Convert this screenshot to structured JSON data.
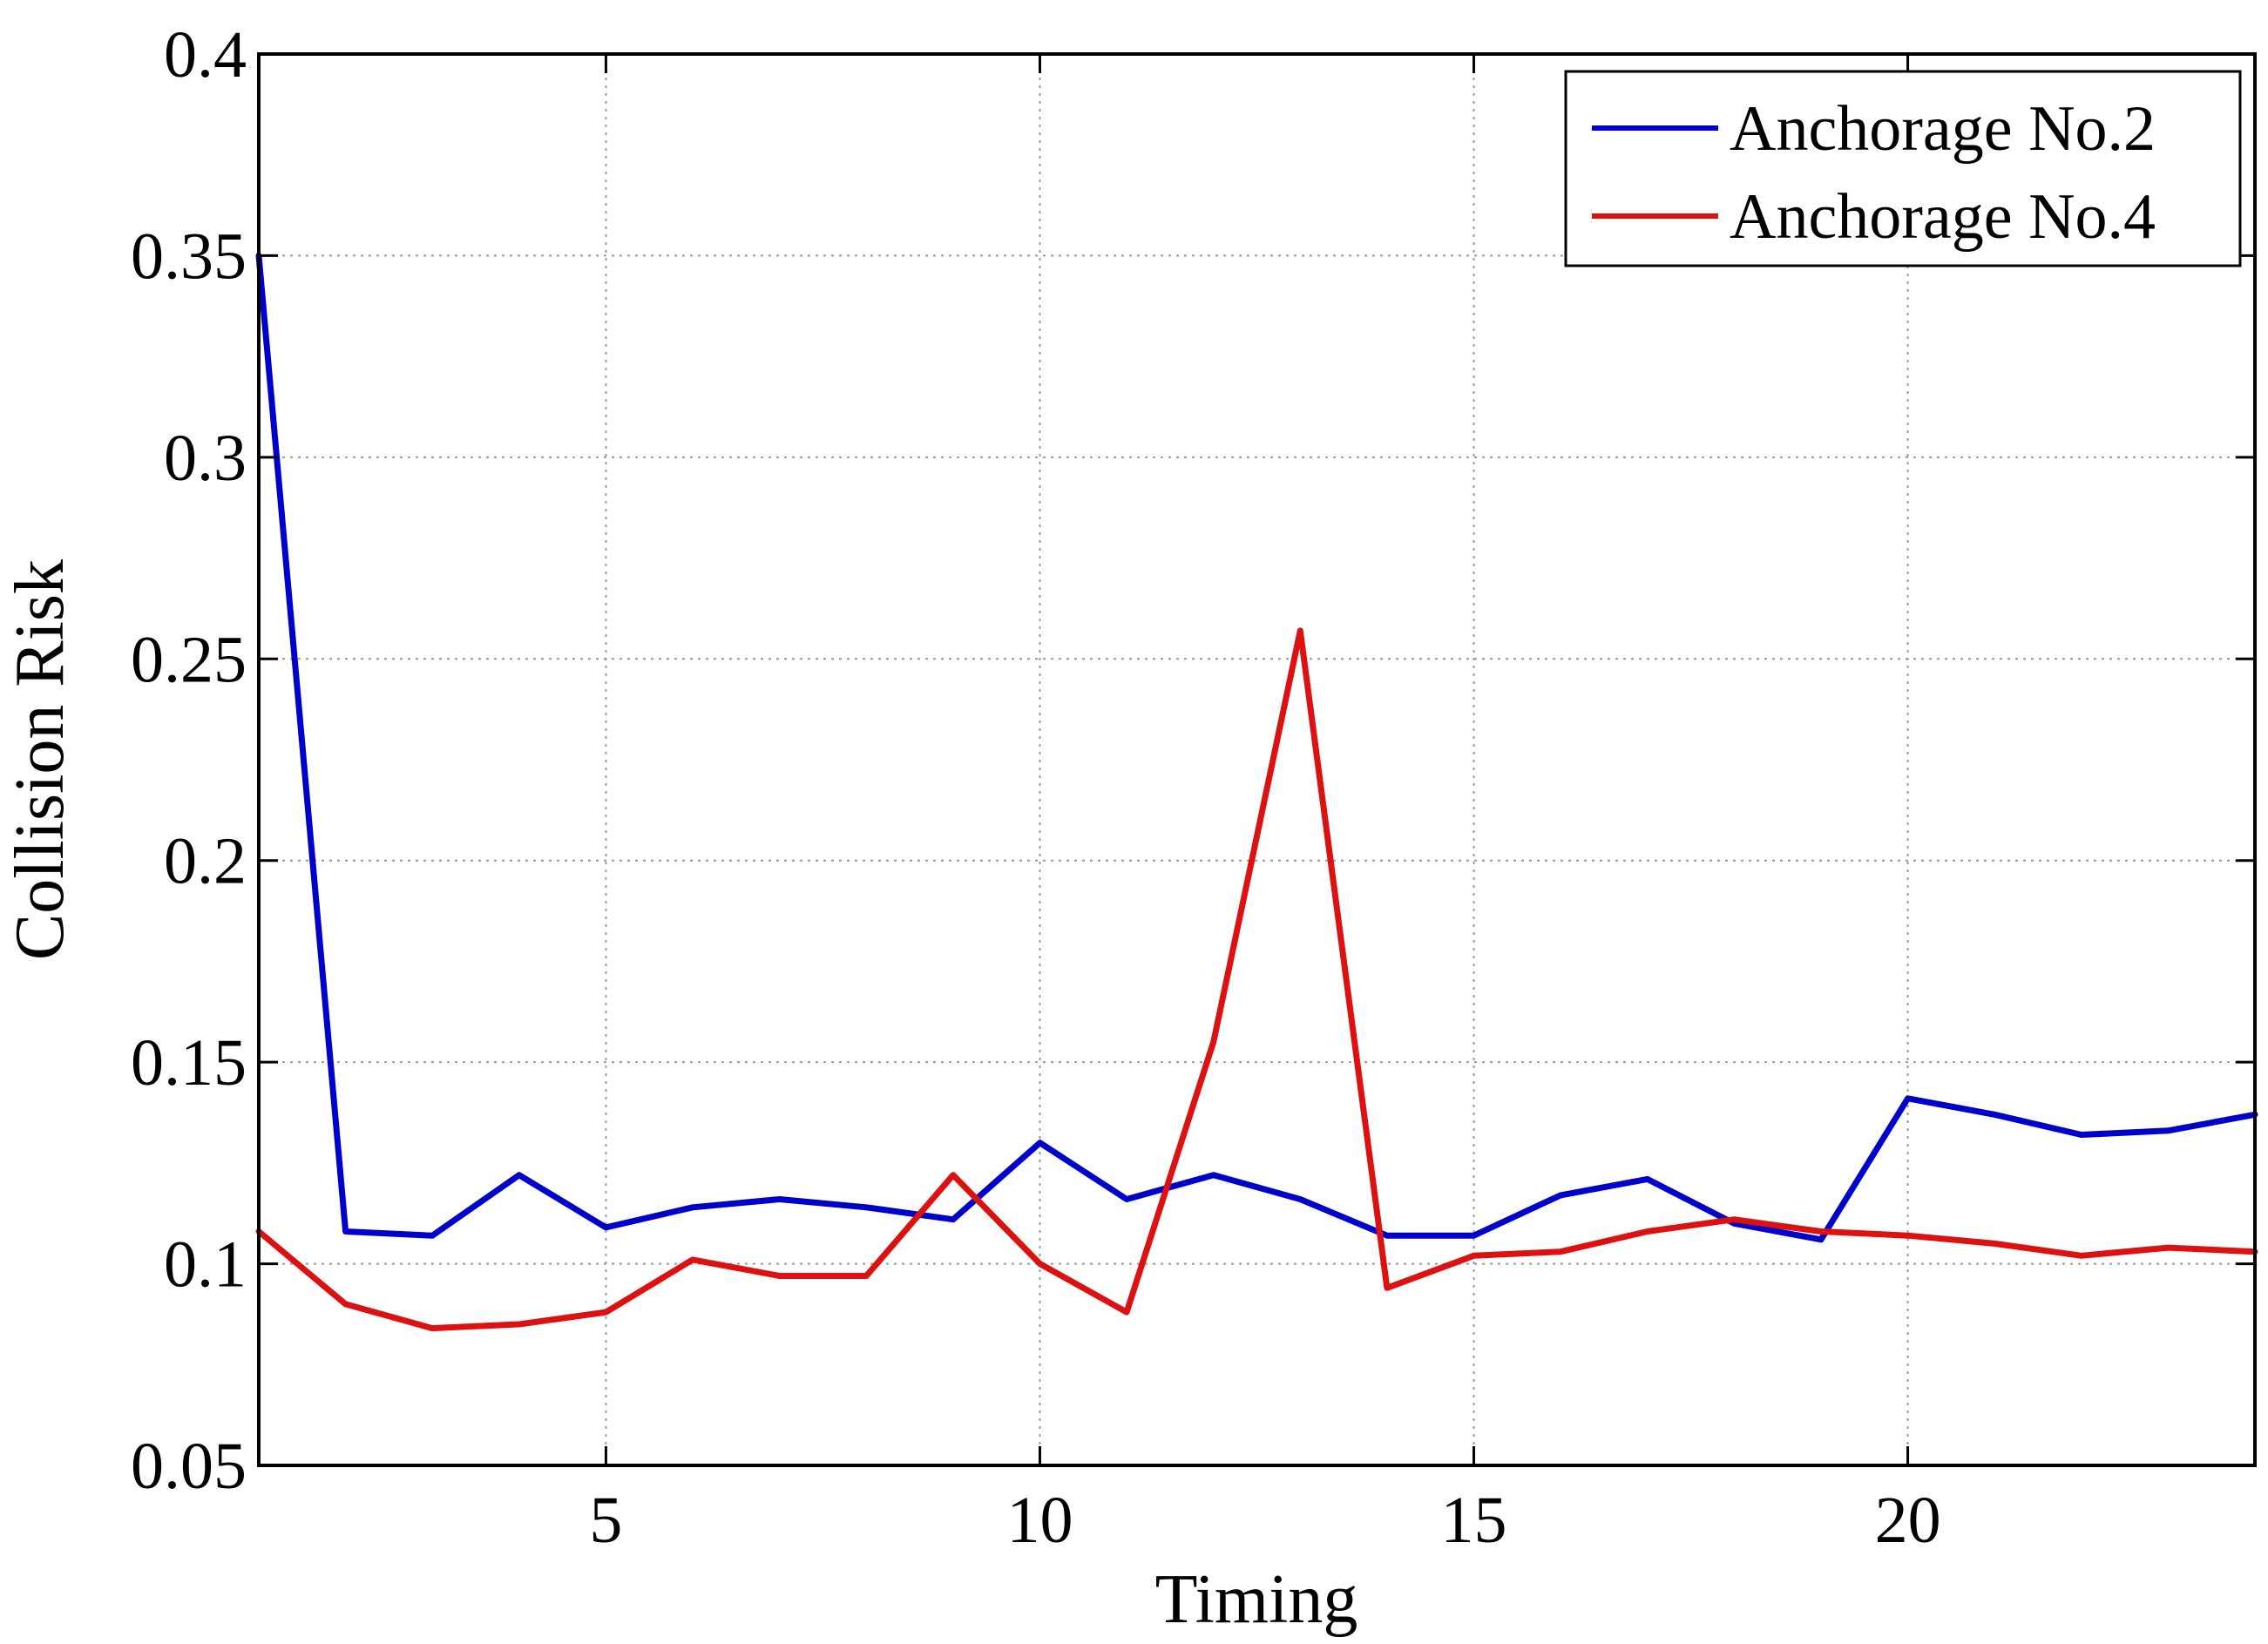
{
  "chart_data": {
    "type": "line",
    "title": "",
    "xlabel": "Timing",
    "ylabel": "Collision Risk",
    "xlim": [
      1,
      24
    ],
    "ylim": [
      0.05,
      0.4
    ],
    "xticks": [
      5,
      10,
      15,
      20
    ],
    "yticks": [
      0.05,
      0.1,
      0.15,
      0.2,
      0.25,
      0.3,
      0.35,
      0.4
    ],
    "ytick_labels": [
      "0.05",
      "0.1",
      "0.15",
      "0.2",
      "0.25",
      "0.3",
      "0.35",
      "0.4"
    ],
    "grid": true,
    "legend_position": "top-right",
    "x": [
      1,
      2,
      3,
      4,
      5,
      6,
      7,
      8,
      9,
      10,
      11,
      12,
      13,
      14,
      15,
      16,
      17,
      18,
      19,
      20,
      21,
      22,
      23,
      24
    ],
    "series": [
      {
        "name": "Anchorage No.2",
        "color": "#0000cc",
        "values": [
          0.35,
          0.108,
          0.107,
          0.122,
          0.109,
          0.114,
          0.116,
          0.114,
          0.111,
          0.13,
          0.116,
          0.122,
          0.116,
          0.107,
          0.107,
          0.117,
          0.121,
          0.11,
          0.106,
          0.141,
          0.137,
          0.132,
          0.133,
          0.137
        ]
      },
      {
        "name": "Anchorage No.4",
        "color": "#dd1111",
        "values": [
          0.108,
          0.09,
          0.084,
          0.085,
          0.088,
          0.101,
          0.097,
          0.097,
          0.122,
          0.1,
          0.088,
          0.155,
          0.257,
          0.094,
          0.102,
          0.103,
          0.108,
          0.111,
          0.108,
          0.107,
          0.105,
          0.102,
          0.104,
          0.103
        ]
      }
    ]
  }
}
